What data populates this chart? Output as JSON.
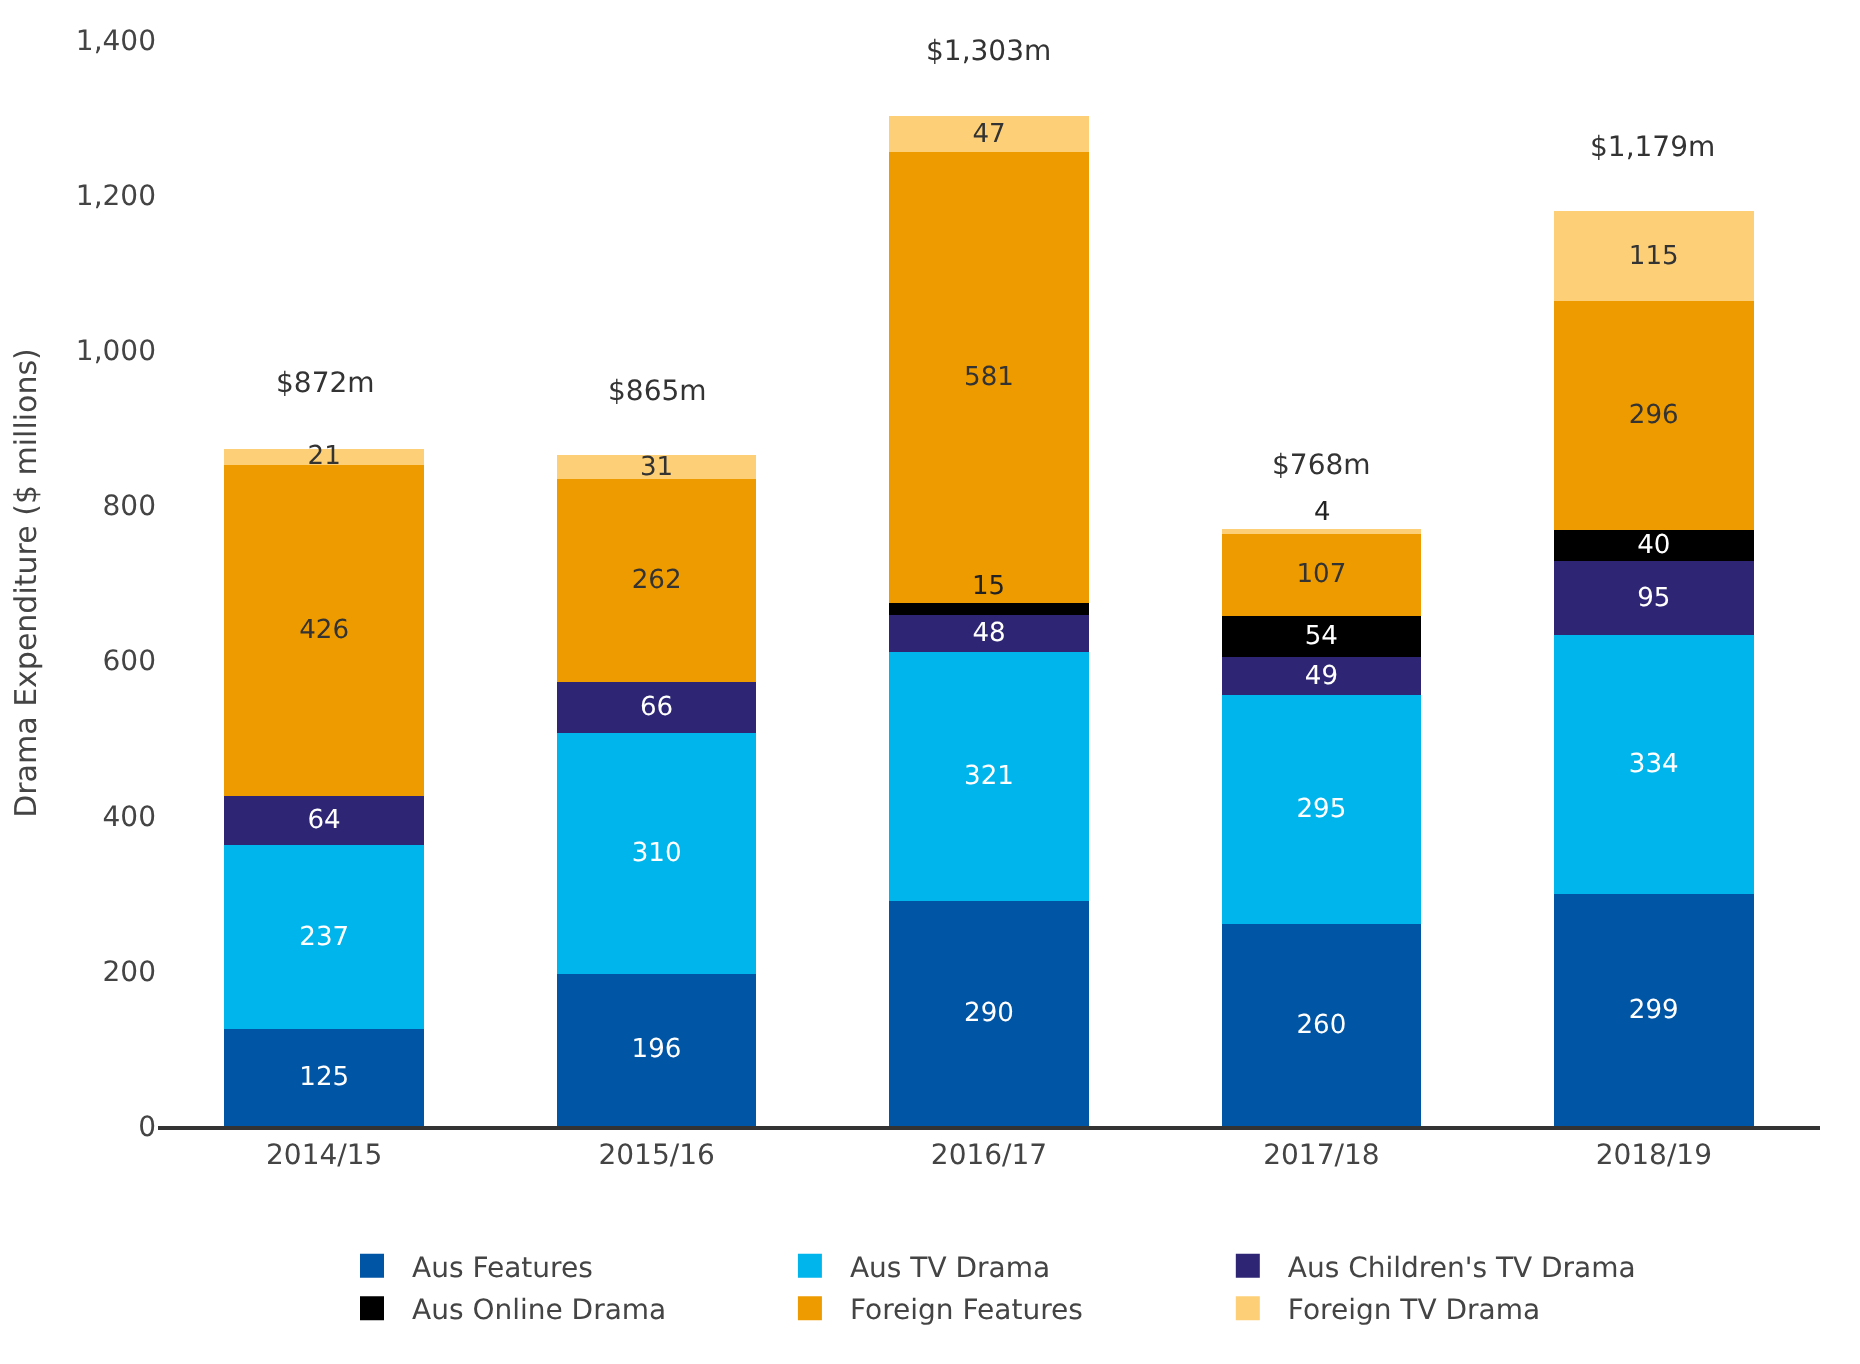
{
  "chart_data": {
    "type": "bar",
    "stacked": true,
    "ylabel": "Drama Expenditure ($ millions)",
    "categories": [
      "2014/15",
      "2015/16",
      "2016/17",
      "2017/18",
      "2018/19"
    ],
    "series": [
      {
        "name": "Aus Features",
        "color": "#0055a5",
        "values": [
          125,
          196,
          290,
          260,
          299
        ]
      },
      {
        "name": "Aus TV Drama",
        "color": "#00b5ec",
        "values": [
          237,
          310,
          321,
          295,
          334
        ]
      },
      {
        "name": "Aus Children's TV Drama",
        "color": "#2e2675",
        "values": [
          64,
          66,
          48,
          49,
          95
        ]
      },
      {
        "name": "Aus Online Drama",
        "color": "#000000",
        "values": [
          null,
          null,
          15,
          54,
          40
        ]
      },
      {
        "name": "Foreign Features",
        "color": "#ee9b00",
        "values": [
          426,
          262,
          581,
          107,
          296
        ]
      },
      {
        "name": "Foreign TV Drama",
        "color": "#fdd077",
        "values": [
          21,
          31,
          47,
          4,
          115
        ]
      }
    ],
    "totals": [
      "$872m",
      "$865m",
      "$1,303m",
      "$768m",
      "$1,179m"
    ],
    "data_labels": true,
    "ylim": [
      0,
      1400
    ],
    "yticks": [
      0,
      200,
      400,
      600,
      800,
      {
        "value": 1000,
        "label": "1,000"
      },
      {
        "value": 1200,
        "label": "1,200"
      },
      {
        "value": 1400,
        "label": "1,400"
      }
    ],
    "legend": "bottom"
  }
}
